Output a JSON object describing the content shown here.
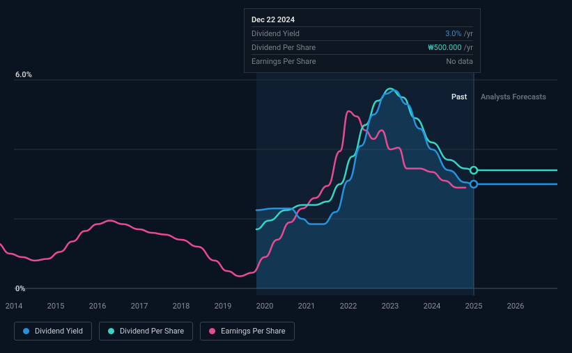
{
  "tooltip": {
    "date": "Dec 22 2024",
    "rows": [
      {
        "label": "Dividend Yield",
        "value": "3.0%",
        "unit": "/yr",
        "color": "#2394df"
      },
      {
        "label": "Dividend Per Share",
        "value": "₩500.000",
        "unit": "/yr",
        "color": "#35d6c6"
      },
      {
        "label": "Earnings Per Share",
        "value": "No data",
        "unit": "",
        "color": "#7a8088"
      }
    ]
  },
  "yAxis": {
    "max": 6.0,
    "min": 0,
    "labels": [
      {
        "v": 6.0,
        "text": "6.0%"
      },
      {
        "v": 0,
        "text": "0%"
      }
    ],
    "grid": [
      6.0,
      4.0,
      2.0,
      0
    ]
  },
  "xAxis": {
    "min": 2014,
    "max": 2027,
    "ticks": [
      2014,
      2015,
      2016,
      2017,
      2018,
      2019,
      2020,
      2021,
      2022,
      2023,
      2024,
      2025,
      2026
    ]
  },
  "regions": {
    "pastLabel": "Past",
    "forecastLabel": "Analysts Forecasts",
    "pastEnd": 2025,
    "historyStart": 2019.8
  },
  "series": {
    "dividendYield": {
      "color": "#2394df",
      "fillColor": "rgba(35,148,223,0.20)",
      "points": [
        [
          2019.8,
          2.25
        ],
        [
          2020.2,
          2.3
        ],
        [
          2020.6,
          2.3
        ],
        [
          2020.9,
          2.0
        ],
        [
          2021.1,
          1.85
        ],
        [
          2021.4,
          1.85
        ],
        [
          2021.7,
          2.2
        ],
        [
          2022.0,
          3.1
        ],
        [
          2022.3,
          4.1
        ],
        [
          2022.6,
          5.0
        ],
        [
          2022.9,
          5.6
        ],
        [
          2023.1,
          5.7
        ],
        [
          2023.4,
          5.3
        ],
        [
          2023.7,
          4.6
        ],
        [
          2024.0,
          4.0
        ],
        [
          2024.4,
          3.4
        ],
        [
          2024.8,
          3.05
        ],
        [
          2025.0,
          3.0
        ]
      ],
      "endMarker": [
        2025.0,
        3.0
      ],
      "forecast": [
        [
          2025.0,
          3.0
        ],
        [
          2027.0,
          3.0
        ]
      ]
    },
    "dividendPerShare": {
      "color": "#35d6c6",
      "points": [
        [
          2019.8,
          1.7
        ],
        [
          2020.1,
          1.95
        ],
        [
          2020.5,
          2.25
        ],
        [
          2020.9,
          2.4
        ],
        [
          2021.2,
          2.4
        ],
        [
          2021.5,
          2.5
        ],
        [
          2021.8,
          3.0
        ],
        [
          2022.1,
          3.8
        ],
        [
          2022.4,
          4.7
        ],
        [
          2022.7,
          5.4
        ],
        [
          2023.0,
          5.75
        ],
        [
          2023.3,
          5.5
        ],
        [
          2023.6,
          4.9
        ],
        [
          2024.0,
          4.2
        ],
        [
          2024.4,
          3.7
        ],
        [
          2024.8,
          3.45
        ],
        [
          2025.0,
          3.4
        ]
      ],
      "endMarker": [
        2025.0,
        3.4
      ],
      "forecast": [
        [
          2025.0,
          3.4
        ],
        [
          2027.0,
          3.4
        ]
      ]
    },
    "earningsPerShare": {
      "color": "#e84b93",
      "points": [
        [
          2013.6,
          1.3
        ],
        [
          2013.9,
          1.0
        ],
        [
          2014.2,
          0.9
        ],
        [
          2014.5,
          0.8
        ],
        [
          2014.8,
          0.85
        ],
        [
          2015.1,
          1.05
        ],
        [
          2015.4,
          1.35
        ],
        [
          2015.7,
          1.65
        ],
        [
          2016.0,
          1.85
        ],
        [
          2016.3,
          1.95
        ],
        [
          2016.6,
          1.85
        ],
        [
          2017.0,
          1.7
        ],
        [
          2017.3,
          1.6
        ],
        [
          2017.6,
          1.55
        ],
        [
          2018.0,
          1.4
        ],
        [
          2018.4,
          1.2
        ],
        [
          2018.8,
          0.8
        ],
        [
          2019.1,
          0.5
        ],
        [
          2019.4,
          0.35
        ],
        [
          2019.7,
          0.45
        ],
        [
          2020.0,
          0.9
        ],
        [
          2020.3,
          1.4
        ],
        [
          2020.6,
          1.9
        ],
        [
          2020.9,
          2.3
        ],
        [
          2021.2,
          2.6
        ],
        [
          2021.5,
          2.95
        ],
        [
          2021.8,
          3.95
        ],
        [
          2022.0,
          5.1
        ],
        [
          2022.2,
          4.95
        ],
        [
          2022.4,
          4.55
        ],
        [
          2022.6,
          4.3
        ],
        [
          2022.8,
          4.55
        ],
        [
          2023.0,
          4.0
        ],
        [
          2023.2,
          4.05
        ],
        [
          2023.4,
          3.45
        ],
        [
          2023.7,
          3.45
        ],
        [
          2024.0,
          3.35
        ],
        [
          2024.3,
          3.1
        ],
        [
          2024.6,
          2.9
        ],
        [
          2024.8,
          2.9
        ]
      ]
    }
  },
  "legend": [
    {
      "label": "Dividend Yield",
      "color": "#2394df"
    },
    {
      "label": "Dividend Per Share",
      "color": "#35d6c6"
    },
    {
      "label": "Earnings Per Share",
      "color": "#e84b93"
    }
  ],
  "colors": {
    "pastText": "#e8e8e8",
    "forecastText": "#6a7280",
    "historyShade": "rgba(25,50,80,0.35)"
  }
}
